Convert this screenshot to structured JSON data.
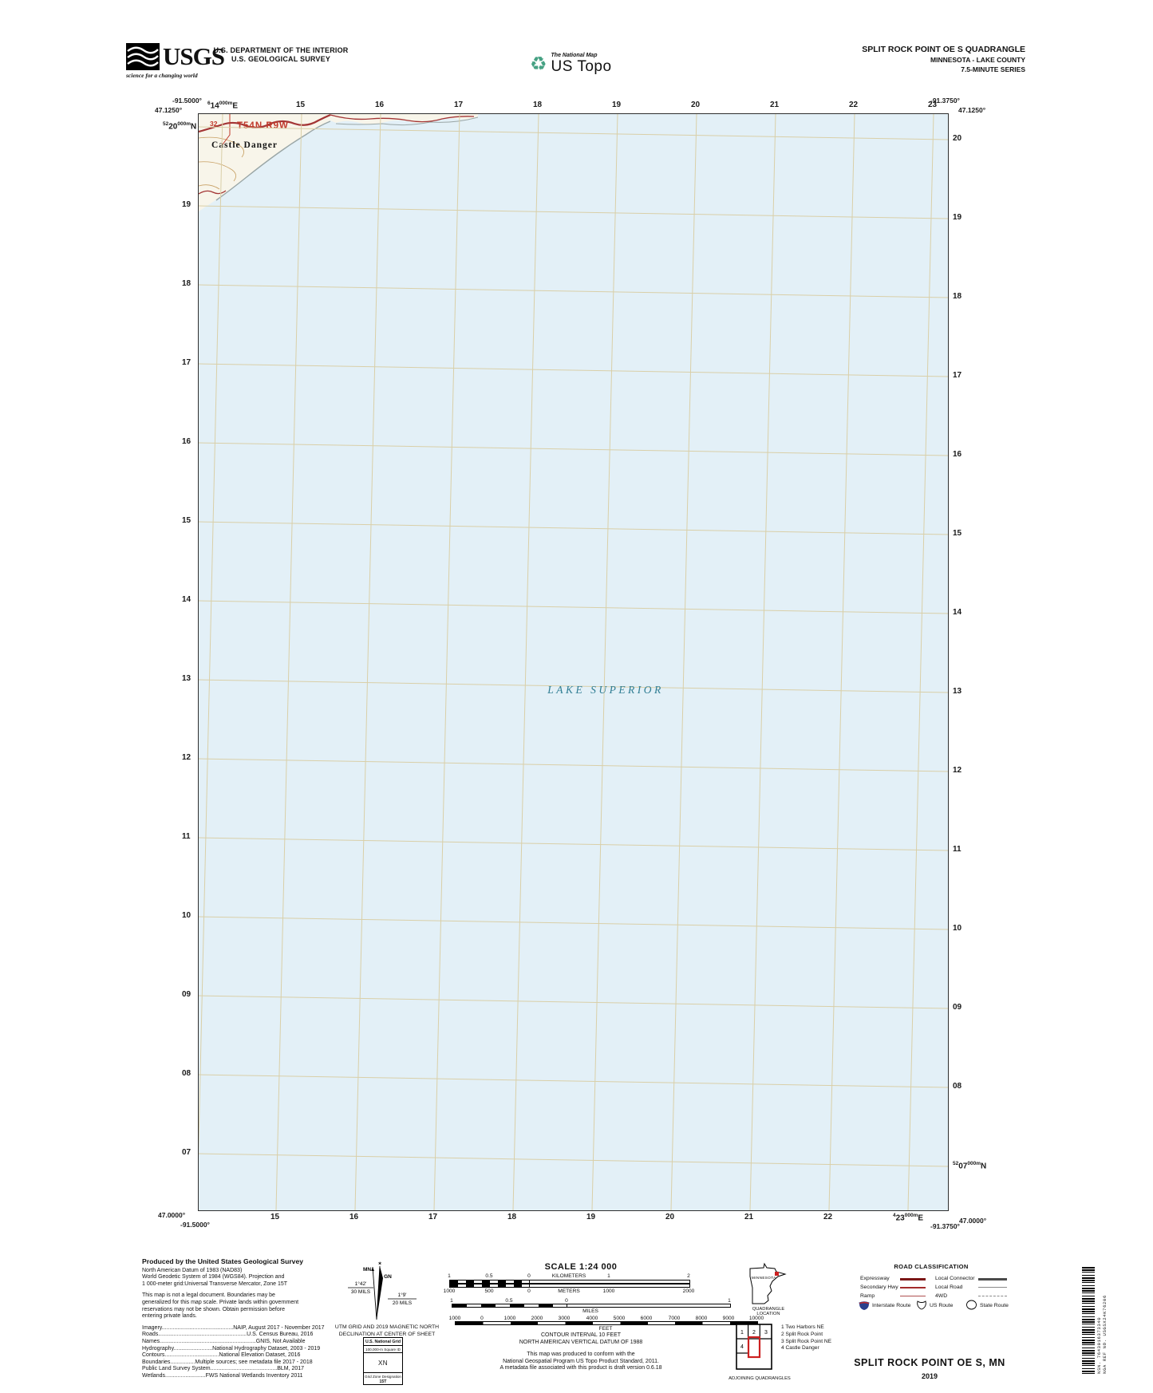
{
  "header": {
    "usgs_logo_text": "USGS",
    "usgs_tagline": "science for a changing world",
    "agency_line1": "U.S. DEPARTMENT OF THE INTERIOR",
    "agency_line2": "U.S. GEOLOGICAL SURVEY",
    "ustopo_brand_top": "The National Map",
    "ustopo_brand": "US Topo",
    "quad_title": "SPLIT ROCK POINT OE S QUADRANGLE",
    "quad_subtitle1": "MINNESOTA - LAKE COUNTY",
    "quad_subtitle2": "7.5-MINUTE SERIES"
  },
  "map": {
    "corners": {
      "top_left_lat": "47.1250°",
      "top_left_lon": "-91.5000°",
      "top_right_lat": "47.1250°",
      "top_right_lon": "-91.3750°",
      "bottom_left_lat": "47.0000°",
      "bottom_left_lon": "-91.5000°",
      "bottom_right_lat": "47.0000°",
      "bottom_right_lon": "-91.3750°"
    },
    "grid": {
      "top_first": {
        "sup1": "6",
        "main": "14",
        "sup2": "000m",
        "dir": "E"
      },
      "top_rest": [
        "15",
        "16",
        "17",
        "18",
        "19",
        "20",
        "21",
        "22",
        "23"
      ],
      "bottom_rest": [
        "15",
        "16",
        "17",
        "18",
        "19",
        "20",
        "21",
        "22"
      ],
      "bottom_last": {
        "sup1": "4",
        "main": "23",
        "sup2": "000m",
        "dir": "E"
      },
      "left_first": {
        "sup1": "52",
        "main": "20",
        "sup2": "000m",
        "dir": "N"
      },
      "left_rest": [
        "19",
        "18",
        "17",
        "16",
        "15",
        "14",
        "13",
        "12",
        "11",
        "10",
        "09",
        "08",
        "07"
      ],
      "right_rest": [
        "20",
        "19",
        "18",
        "17",
        "16",
        "15",
        "14",
        "13",
        "12",
        "11",
        "10",
        "09",
        "08"
      ],
      "right_last": {
        "sup1": "52",
        "main": "07",
        "sup2": "000m",
        "dir": "N"
      }
    },
    "labels": {
      "lake": "LAKE SUPERIOR",
      "town": "Castle Danger",
      "township": "T54N R9W",
      "section": "32"
    },
    "colors": {
      "water": "#e3f0f7",
      "grid_line": "#d9cfa8",
      "road_red": "#a33535",
      "township_red": "#c0392b",
      "lake_label": "#2f7d93",
      "land": "#f8f5ea",
      "contour": "#c79f62"
    }
  },
  "footer": {
    "credits": {
      "title": "Produced by the United States Geological Survey",
      "datum_lines": [
        "North American Datum of 1983 (NAD83)",
        "World Geodetic System of 1984 (WGS84).  Projection and",
        "1 000-meter grid:Universal Transverse Mercator, Zone 15T"
      ],
      "legal_lines": [
        "This map is not a legal document. Boundaries may be",
        "generalized for this map scale. Private lands within government",
        "reservations may not be shown. Obtain permission before",
        "entering private lands."
      ],
      "source_lines": [
        "Imagery..............................................NAIP, August 2017 - November 2017",
        "Roads.........................................................U.S. Census Bureau, 2016",
        "Names..............................................................GNIS, Not Available",
        "Hydrography.........................National Hydrography Dataset, 2003 - 2019",
        "Contours...................................National Elevation Dataset, 2016",
        "Boundaries................Multiple sources; see metadata file 2017 - 2018",
        "Public Land Survey System...........................................BLM, 2017",
        "Wetlands..........................FWS National Wetlands Inventory 2011"
      ]
    },
    "declination": {
      "star": "✶",
      "mn_label": "MN",
      "gn_label": "GN",
      "mn_value": "1°42'",
      "mn_mils": "30 MILS",
      "gn_value": "1°9'",
      "gn_mils": "20 MILS",
      "caption1": "UTM GRID AND 2019 MAGNETIC NORTH",
      "caption2": "DECLINATION AT CENTER OF SHEET"
    },
    "usng": {
      "title": "U.S. National Grid",
      "sub": "100,000-m Square ID",
      "square": "XN",
      "zone_label": "Grid Zone Designation",
      "zone": "15T"
    },
    "scale": {
      "title": "SCALE 1:24 000",
      "bars": [
        {
          "name": "KILOMETERS",
          "labels": [
            "1",
            "0.5",
            "0",
            "1",
            "2"
          ]
        },
        {
          "name": "METERS",
          "labels": [
            "1000",
            "500",
            "0",
            "1000",
            "2000"
          ]
        },
        {
          "name": "MILES",
          "labels": [
            "1",
            "0.5",
            "0",
            "1"
          ]
        },
        {
          "name": "FEET",
          "labels": [
            "1000",
            "0",
            "1000",
            "2000",
            "3000",
            "4000",
            "5000",
            "6000",
            "7000",
            "8000",
            "9000",
            "10000"
          ]
        }
      ],
      "notes": [
        "CONTOUR INTERVAL 10 FEET",
        "NORTH AMERICAN VERTICAL DATUM OF 1988"
      ],
      "conformance": [
        "This map was produced to conform with the",
        "National Geospatial Program US Topo Product Standard, 2011.",
        "A metadata file associated with this product is draft version 0.6.18"
      ]
    },
    "location": {
      "state": "MINNESOTA",
      "caption": "QUADRANGLE LOCATION"
    },
    "adjoining": {
      "cells": [
        "1",
        "2",
        "3",
        "4"
      ],
      "legend": [
        "1 Two Harbors NE",
        "2 Split Rock Point",
        "3 Split Rock Point NE",
        "4 Castle Danger"
      ],
      "caption": "ADJOINING QUADRANGLES"
    },
    "roads": {
      "title": "ROAD CLASSIFICATION",
      "left": [
        "Expressway",
        "Secondary Hwy",
        "Ramp"
      ],
      "right": [
        "Local Connector",
        "Local Road",
        "4WD"
      ],
      "routes": [
        "Interstate Route",
        "US Route",
        "State Route"
      ]
    },
    "title_block": {
      "title": "SPLIT ROCK POINT OE S,  MN",
      "year": "2019"
    },
    "barcode": {
      "nsn": "NSN.  7643016373340",
      "nga": "NGA REF NO.  USGSX24K76206"
    }
  }
}
